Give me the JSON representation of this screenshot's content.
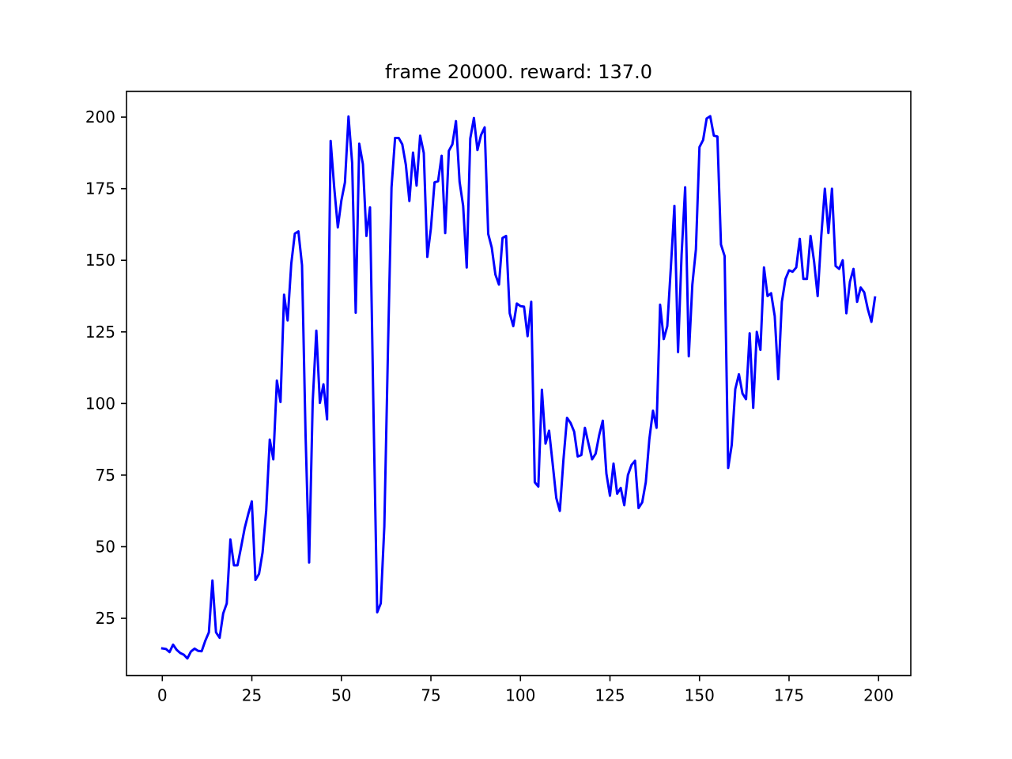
{
  "chart_data": {
    "type": "line",
    "title": "frame 20000. reward: 137.0",
    "xlabel": "",
    "ylabel": "",
    "xlim": [
      -10,
      209
    ],
    "ylim": [
      5,
      209
    ],
    "xticks": [
      0,
      25,
      50,
      75,
      100,
      125,
      150,
      175,
      200
    ],
    "yticks": [
      25,
      50,
      75,
      100,
      125,
      150,
      175,
      200
    ],
    "grid": false,
    "legend": "none",
    "line_color": "#0000ff",
    "series": [
      {
        "x": [
          0,
          1,
          2,
          3,
          4,
          5,
          6,
          7,
          8,
          9,
          10,
          11,
          12,
          13,
          14,
          15,
          16,
          17,
          18,
          19,
          20,
          21,
          22,
          23,
          24,
          25,
          26,
          27,
          28,
          29,
          30,
          31,
          32,
          33,
          34,
          35,
          36,
          37,
          38,
          39,
          40,
          41,
          42,
          43,
          44,
          45,
          46,
          47,
          48,
          49,
          50,
          51,
          52,
          53,
          54,
          55,
          56,
          57,
          58,
          59,
          60,
          61,
          62,
          63,
          64,
          65,
          66,
          67,
          68,
          69,
          70,
          71,
          72,
          73,
          74,
          75,
          76,
          77,
          78,
          79,
          80,
          81,
          82,
          83,
          84,
          85,
          86,
          87,
          88,
          89,
          90,
          91,
          92,
          93,
          94,
          95,
          96,
          97,
          98,
          99,
          100,
          101,
          102,
          103,
          104,
          105,
          106,
          107,
          108,
          109,
          110,
          111,
          112,
          113,
          114,
          115,
          116,
          117,
          118,
          119,
          120,
          121,
          122,
          123,
          124,
          125,
          126,
          127,
          128,
          129,
          130,
          131,
          132,
          133,
          134,
          135,
          136,
          137,
          138,
          139,
          140,
          141,
          142,
          143,
          144,
          145,
          146,
          147,
          148,
          149,
          150,
          151,
          152,
          153,
          154,
          155,
          156,
          157,
          158,
          159,
          160,
          161,
          162,
          163,
          164,
          165,
          166,
          167,
          168,
          169,
          170,
          171,
          172,
          173,
          174,
          175,
          176,
          177,
          178,
          179,
          180,
          181,
          182,
          183,
          184,
          185,
          186,
          187,
          188,
          189,
          190,
          191,
          192,
          193,
          194,
          195,
          196,
          197,
          198,
          199
        ],
        "values": [
          14.5,
          14.3,
          13.2,
          15.8,
          14.0,
          12.9,
          12.3,
          11.0,
          13.4,
          14.4,
          13.6,
          13.5,
          17.2,
          20.1,
          38.2,
          20.1,
          18.2,
          26.7,
          30.2,
          52.5,
          43.5,
          43.5,
          49.8,
          56.5,
          61.4,
          65.8,
          38.4,
          40.5,
          48.0,
          62.7,
          87.4,
          80.5,
          108.0,
          100.5,
          138.0,
          129.0,
          148.8,
          159.3,
          160.1,
          148.3,
          88.9,
          44.5,
          100.5,
          125.4,
          100.2,
          106.7,
          94.5,
          191.7,
          175.5,
          161.5,
          170.9,
          177.2,
          200.2,
          184.0,
          131.7,
          190.7,
          183.6,
          158.5,
          168.5,
          95.5,
          27.1,
          30.2,
          57.0,
          118.7,
          175.4,
          192.7,
          192.7,
          190.5,
          183.4,
          170.7,
          187.6,
          176.1,
          193.5,
          187.5,
          151.2,
          161.1,
          177.2,
          177.6,
          186.5,
          159.5,
          188.2,
          190.5,
          198.6,
          177.4,
          169.0,
          147.5,
          192.5,
          199.7,
          188.5,
          193.7,
          196.4,
          159.2,
          154.4,
          145.0,
          141.5,
          157.8,
          158.5,
          131.5,
          127.0,
          134.9,
          134.0,
          133.8,
          123.5,
          135.5,
          72.5,
          71.0,
          104.8,
          86.0,
          90.5,
          79.0,
          67.0,
          62.5,
          80.2,
          95.0,
          93.2,
          90.2,
          81.5,
          82.0,
          91.5,
          86.0,
          80.5,
          82.5,
          89.0,
          94.0,
          75.5,
          67.8,
          79.0,
          68.5,
          70.5,
          64.5,
          75.0,
          78.5,
          80.0,
          63.5,
          65.5,
          72.5,
          87.5,
          97.5,
          91.5,
          134.5,
          122.5,
          127.0,
          147.5,
          169.0,
          118.0,
          152.0,
          175.5,
          116.5,
          141.5,
          153.8,
          189.5,
          192.0,
          199.5,
          200.3,
          193.5,
          193.2,
          155.5,
          151.5,
          77.5,
          85.5,
          105.0,
          110.2,
          103.5,
          101.5,
          124.5,
          98.5,
          125.0,
          118.7,
          147.5,
          137.5,
          138.5,
          130.5,
          108.5,
          135.5,
          143.5,
          146.5,
          146.0,
          147.5,
          157.5,
          143.5,
          143.5,
          158.5,
          149.5,
          137.5,
          158.5,
          175.0,
          159.5,
          175.0,
          148.0,
          147.0,
          150.0,
          131.5,
          142.5,
          147.0,
          135.5,
          140.5,
          138.8,
          133.0,
          128.5,
          137.0
        ]
      }
    ]
  }
}
